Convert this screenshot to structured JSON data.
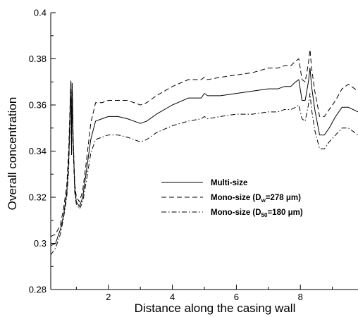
{
  "chart_data": {
    "type": "line",
    "title": "",
    "xlabel": "Distance along the casing wall",
    "ylabel": "Overall concentration",
    "xlim": [
      0.2,
      9.8
    ],
    "ylim": [
      0.28,
      0.4
    ],
    "x_ticks": [
      2,
      4,
      6,
      8
    ],
    "x_tick_labels": [
      "2",
      "4",
      "6",
      "8"
    ],
    "y_ticks": [
      0.28,
      0.3,
      0.32,
      0.34,
      0.36,
      0.38,
      0.4
    ],
    "y_tick_labels": [
      "0.28",
      "0.3",
      "0.32",
      "0.34",
      "0.36",
      "0.38",
      "0.4"
    ],
    "grid": false,
    "legend_position": "center-right",
    "legend": [
      {
        "label": "Multi-size",
        "base": "Multi-size",
        "sub": "",
        "tail": "",
        "dash": "solid"
      },
      {
        "label": "Mono-size (Dw=278 μm)",
        "base": "Mono-size (D",
        "sub": "w",
        "tail": "=278 μm)",
        "dash": "dashed"
      },
      {
        "label": "Mono-size (D50=180 μm)",
        "base": "Mono-size (D",
        "sub": "50",
        "tail": "=180 μm)",
        "dash": "dashdot"
      }
    ],
    "series": [
      {
        "name": "Multi-size",
        "dash": "solid",
        "x": [
          0.2,
          0.35,
          0.5,
          0.6,
          0.7,
          0.76,
          0.8,
          0.83,
          0.85,
          0.87,
          0.9,
          0.95,
          1.0,
          1.1,
          1.2,
          1.3,
          1.45,
          1.6,
          1.8,
          2.0,
          2.3,
          2.6,
          2.8,
          3.0,
          3.2,
          3.5,
          4.0,
          4.5,
          4.9,
          5.0,
          5.1,
          5.5,
          6.0,
          6.5,
          7.0,
          7.3,
          7.5,
          7.7,
          7.85,
          7.95,
          8.05,
          8.15,
          8.25,
          8.3,
          8.35,
          8.45,
          8.6,
          8.75,
          8.9,
          9.1,
          9.3,
          9.5,
          9.8
        ],
        "y": [
          0.299,
          0.3,
          0.306,
          0.312,
          0.322,
          0.335,
          0.355,
          0.37,
          0.34,
          0.369,
          0.345,
          0.324,
          0.318,
          0.316,
          0.32,
          0.33,
          0.345,
          0.353,
          0.354,
          0.355,
          0.355,
          0.354,
          0.353,
          0.352,
          0.353,
          0.356,
          0.36,
          0.363,
          0.363,
          0.365,
          0.364,
          0.364,
          0.365,
          0.366,
          0.367,
          0.367,
          0.368,
          0.368,
          0.37,
          0.371,
          0.362,
          0.362,
          0.37,
          0.376,
          0.368,
          0.358,
          0.347,
          0.347,
          0.35,
          0.355,
          0.359,
          0.359,
          0.357
        ]
      },
      {
        "name": "Mono-size (Dw=278 μm)",
        "dash": "dashed",
        "x": [
          0.2,
          0.35,
          0.5,
          0.6,
          0.7,
          0.76,
          0.8,
          0.83,
          0.85,
          0.87,
          0.9,
          0.95,
          1.0,
          1.1,
          1.2,
          1.3,
          1.45,
          1.6,
          1.8,
          2.0,
          2.3,
          2.6,
          2.8,
          3.0,
          3.2,
          3.5,
          4.0,
          4.5,
          4.9,
          5.0,
          5.1,
          5.5,
          6.0,
          6.5,
          7.0,
          7.3,
          7.5,
          7.7,
          7.85,
          7.95,
          8.05,
          8.15,
          8.25,
          8.3,
          8.35,
          8.45,
          8.6,
          8.75,
          8.9,
          9.1,
          9.3,
          9.5,
          9.8
        ],
        "y": [
          0.303,
          0.304,
          0.308,
          0.315,
          0.325,
          0.34,
          0.358,
          0.371,
          0.342,
          0.37,
          0.346,
          0.326,
          0.32,
          0.318,
          0.323,
          0.334,
          0.352,
          0.361,
          0.361,
          0.362,
          0.362,
          0.362,
          0.361,
          0.36,
          0.361,
          0.364,
          0.368,
          0.371,
          0.371,
          0.372,
          0.371,
          0.372,
          0.373,
          0.374,
          0.376,
          0.376,
          0.377,
          0.377,
          0.379,
          0.38,
          0.371,
          0.37,
          0.378,
          0.384,
          0.376,
          0.366,
          0.355,
          0.355,
          0.358,
          0.362,
          0.367,
          0.369,
          0.366
        ]
      },
      {
        "name": "Mono-size (D50=180 μm)",
        "dash": "dashdot",
        "x": [
          0.2,
          0.35,
          0.5,
          0.6,
          0.7,
          0.76,
          0.8,
          0.83,
          0.85,
          0.87,
          0.9,
          0.95,
          1.0,
          1.1,
          1.2,
          1.3,
          1.45,
          1.6,
          1.8,
          2.0,
          2.3,
          2.6,
          2.8,
          3.0,
          3.2,
          3.5,
          4.0,
          4.5,
          4.9,
          5.0,
          5.1,
          5.5,
          6.0,
          6.5,
          7.0,
          7.3,
          7.5,
          7.7,
          7.85,
          7.95,
          8.05,
          8.15,
          8.25,
          8.3,
          8.35,
          8.45,
          8.6,
          8.75,
          8.9,
          9.1,
          9.3,
          9.5,
          9.8
        ],
        "y": [
          0.295,
          0.298,
          0.304,
          0.311,
          0.32,
          0.332,
          0.352,
          0.368,
          0.338,
          0.367,
          0.342,
          0.322,
          0.317,
          0.315,
          0.318,
          0.326,
          0.339,
          0.345,
          0.346,
          0.347,
          0.347,
          0.346,
          0.345,
          0.344,
          0.345,
          0.348,
          0.351,
          0.353,
          0.354,
          0.355,
          0.354,
          0.355,
          0.356,
          0.356,
          0.357,
          0.357,
          0.358,
          0.358,
          0.359,
          0.36,
          0.354,
          0.353,
          0.36,
          0.365,
          0.358,
          0.349,
          0.341,
          0.341,
          0.344,
          0.347,
          0.35,
          0.35,
          0.347
        ]
      }
    ]
  }
}
